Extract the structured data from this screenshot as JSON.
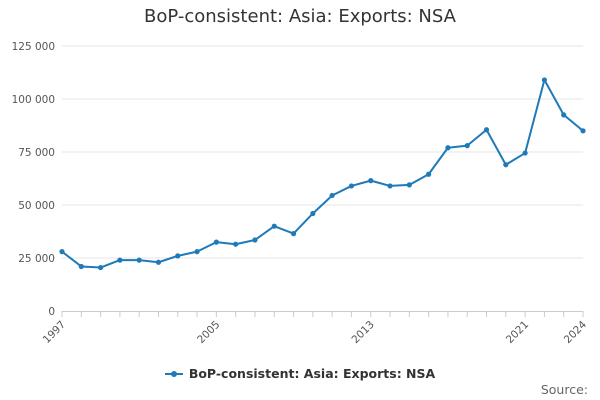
{
  "chart_data": {
    "type": "line",
    "title": "BoP-consistent: Asia: Exports: NSA",
    "xlabel": "",
    "ylabel": "",
    "x": [
      1997,
      1998,
      1999,
      2000,
      2001,
      2002,
      2003,
      2004,
      2005,
      2006,
      2007,
      2008,
      2009,
      2010,
      2011,
      2012,
      2013,
      2014,
      2015,
      2016,
      2017,
      2018,
      2019,
      2020,
      2021,
      2022,
      2023,
      2024
    ],
    "series": [
      {
        "name": "BoP-consistent: Asia: Exports: NSA",
        "color": "#1f7ab8",
        "values": [
          28000,
          21000,
          20500,
          24000,
          24000,
          23000,
          26000,
          28000,
          32500,
          31500,
          33500,
          40000,
          36500,
          46000,
          54500,
          59000,
          61500,
          59000,
          59500,
          64500,
          77000,
          78000,
          85500,
          69000,
          74500,
          109000,
          92500,
          85000
        ]
      }
    ],
    "xticks": [
      "1997",
      "2005",
      "2013",
      "2021",
      "2024"
    ],
    "yticks": [
      "0",
      "25 000",
      "50 000",
      "75 000",
      "100 000",
      "125 000"
    ],
    "ylim": [
      0,
      125000
    ],
    "xlim": [
      1997,
      2024
    ],
    "grid": true,
    "legend_position": "bottom"
  },
  "legend": {
    "label": "BoP-consistent: Asia: Exports: NSA"
  },
  "source": {
    "label": "Source:"
  }
}
